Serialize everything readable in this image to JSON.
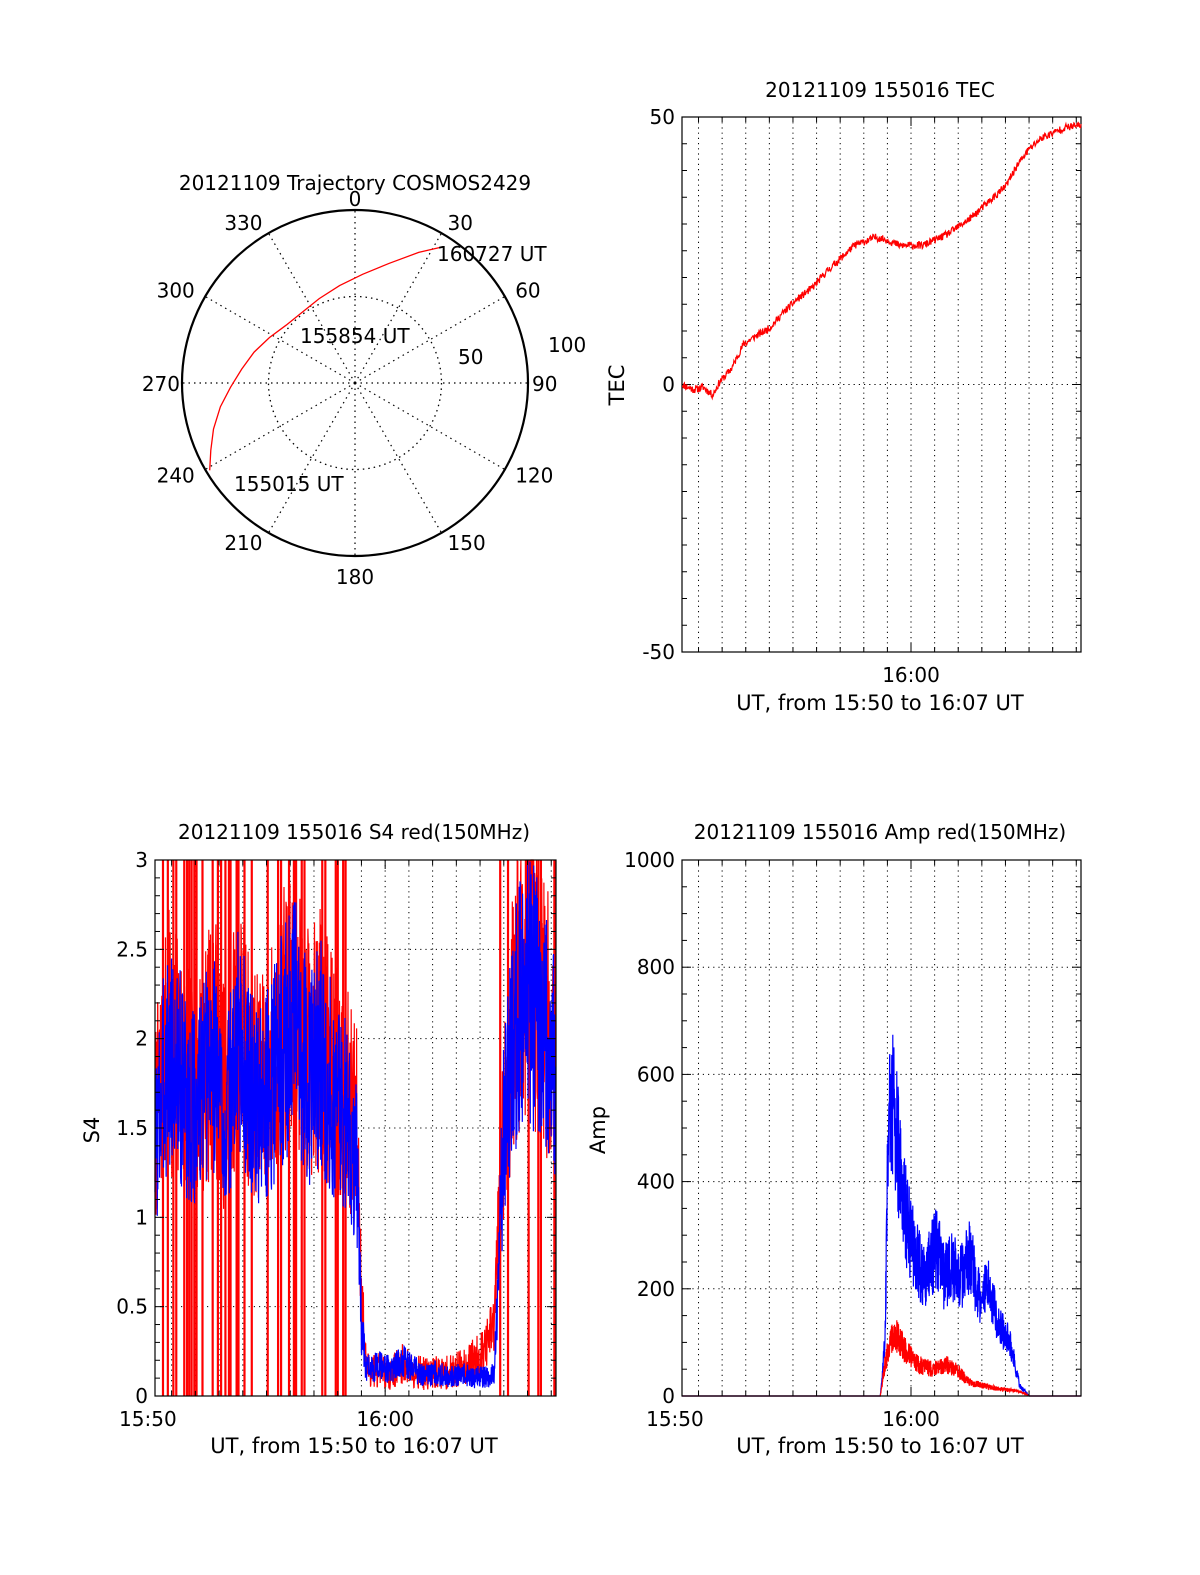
{
  "charts": [
    {
      "title": "20121109 Trajectory COSMOS2429",
      "angle_labels": [
        "0",
        "30",
        "60",
        "90",
        "120",
        "150",
        "180",
        "210",
        "240",
        "270",
        "300",
        "330"
      ],
      "ring_labels": [
        "50",
        "100"
      ],
      "track_labels": [
        {
          "text": "160727 UT"
        },
        {
          "text": "155854 UT"
        },
        {
          "text": "155015 UT"
        }
      ]
    },
    {
      "title": "20121109 155016 TEC",
      "ylabel": "TEC",
      "xlabel": "UT, from 15:50 to 16:07 UT",
      "x_tick_labels": [
        "16:00"
      ],
      "y_tick_labels": [
        "50",
        "0",
        "-50"
      ]
    },
    {
      "title": "20121109 155016 S4 red(150MHz)",
      "ylabel": "S4",
      "xlabel": "UT, from 15:50 to 16:07 UT",
      "x_tick_labels": [
        "15:50",
        "16:00"
      ],
      "y_tick_labels": [
        "0",
        "0.5",
        "1",
        "1.5",
        "2",
        "2.5",
        "3"
      ]
    },
    {
      "title": "20121109 155016 Amp red(150MHz)",
      "ylabel": "Amp",
      "xlabel": "UT, from 15:50 to 16:07 UT",
      "x_tick_labels": [
        "15:50",
        "16:00"
      ],
      "y_tick_labels": [
        "0",
        "200",
        "400",
        "600",
        "800",
        "1000"
      ]
    }
  ],
  "chart_data": [
    {
      "type": "scatter",
      "title": "20121109 Trajectory COSMOS2429",
      "projection": "polar",
      "r_max": 100,
      "rings": [
        50,
        100
      ],
      "series": [
        {
          "color": "#ff0000",
          "azimuth_deg": [
            239,
            245,
            252,
            260,
            268,
            277,
            287,
            298,
            310,
            323,
            337,
            351,
            4,
            16,
            26,
            33
          ],
          "radius": [
            98,
            92,
            86,
            79,
            72,
            66,
            61,
            56,
            52,
            51,
            53,
            57,
            63,
            72,
            84,
            94
          ]
        }
      ],
      "labels": [
        "160727 UT",
        "155854 UT",
        "155015 UT"
      ]
    },
    {
      "type": "line",
      "title": "20121109 155016 TEC",
      "xlabel": "UT, from 15:50 to 16:07 UT",
      "ylabel": "TEC",
      "xlim": [
        950.3,
        967.2
      ],
      "ylim": [
        -50,
        50
      ],
      "x_ticks": [
        960
      ],
      "y_ticks": [
        50,
        0,
        -50
      ],
      "grid": "vertical-dotted",
      "series": [
        {
          "color": "#ff0000",
          "x": [
            950.3,
            950.8,
            951.2,
            951.6,
            951.9,
            952.4,
            952.9,
            953.4,
            954.0,
            954.6,
            955.2,
            955.8,
            956.4,
            957.0,
            957.6,
            958.2,
            958.5,
            959.0,
            959.5,
            960.0,
            960.5,
            961.0,
            961.5,
            962.0,
            962.5,
            963.0,
            963.5,
            964.0,
            964.5,
            965.0,
            965.5,
            966.0,
            966.5,
            967.2
          ],
          "y": [
            0,
            -1,
            -0.5,
            -2,
            0.5,
            3,
            7.5,
            9,
            10.5,
            13.5,
            16,
            18,
            21,
            23.5,
            26,
            27,
            27.5,
            27,
            26,
            26,
            26,
            27,
            28,
            29.5,
            31,
            33,
            35,
            37,
            41,
            44,
            46,
            47,
            48,
            48.5
          ]
        }
      ]
    },
    {
      "type": "line",
      "title": "20121109 155016 S4 red(150MHz)",
      "xlabel": "UT, from 15:50 to 16:07 UT",
      "ylabel": "S4",
      "xlim": [
        950.3,
        967.2
      ],
      "ylim": [
        0,
        3
      ],
      "x_ticks": [
        950,
        960
      ],
      "y_ticks": [
        0,
        0.5,
        1,
        1.5,
        2,
        2.5,
        3
      ],
      "grid": "dotted",
      "series": [
        {
          "color": "#0000ff",
          "x": [
            950.3,
            950.8,
            951.3,
            951.8,
            952.3,
            952.8,
            953.3,
            953.8,
            954.3,
            954.8,
            955.3,
            955.8,
            956.3,
            956.8,
            957.3,
            957.8,
            958.3,
            958.8,
            959.0,
            959.2,
            959.7,
            960.2,
            960.7,
            961.2,
            961.7,
            962.2,
            962.7,
            963.2,
            963.7,
            964.2,
            964.6,
            965.0,
            965.5,
            966.0,
            966.5,
            967.2
          ],
          "y": [
            1.4,
            1.9,
            1.8,
            1.6,
            1.7,
            1.9,
            1.5,
            2.0,
            1.7,
            1.6,
            1.8,
            2.0,
            2.1,
            1.8,
            1.9,
            1.7,
            1.6,
            1.3,
            0.4,
            0.15,
            0.17,
            0.15,
            0.2,
            0.15,
            0.12,
            0.13,
            0.1,
            0.12,
            0.11,
            0.1,
            0.12,
            1.5,
            2.1,
            2.3,
            2.2,
            1.8
          ]
        },
        {
          "color": "#ff0000",
          "x": [
            950.3,
            950.8,
            951.3,
            951.8,
            952.3,
            952.8,
            953.3,
            953.8,
            954.3,
            954.8,
            955.3,
            955.8,
            956.3,
            956.8,
            957.3,
            957.8,
            958.3,
            958.8,
            959.0,
            959.2,
            959.7,
            960.2,
            960.7,
            961.2,
            961.7,
            962.2,
            962.7,
            963.2,
            963.7,
            964.2,
            964.6,
            965.0,
            965.5,
            966.0,
            966.5,
            967.2
          ],
          "y": [
            1.5,
            2.0,
            1.9,
            1.7,
            1.8,
            2.0,
            1.6,
            2.1,
            1.8,
            1.7,
            1.9,
            2.1,
            2.2,
            1.9,
            2.0,
            1.8,
            1.7,
            1.5,
            0.6,
            0.15,
            0.15,
            0.13,
            0.18,
            0.15,
            0.12,
            0.13,
            0.13,
            0.16,
            0.2,
            0.25,
            0.4,
            1.6,
            2.2,
            2.4,
            2.3,
            1.9
          ]
        }
      ]
    },
    {
      "type": "line",
      "title": "20121109 155016 Amp red(150MHz)",
      "xlabel": "UT, from 15:50 to 16:07 UT",
      "ylabel": "Amp",
      "xlim": [
        950.3,
        967.2
      ],
      "ylim": [
        0,
        1000
      ],
      "x_ticks": [
        950,
        960
      ],
      "y_ticks": [
        0,
        200,
        400,
        600,
        800,
        1000
      ],
      "grid": "dotted",
      "series": [
        {
          "color": "#0000ff",
          "x": [
            950.3,
            955.0,
            958.7,
            958.9,
            959.0,
            959.1,
            959.3,
            959.5,
            959.8,
            960.1,
            960.5,
            960.8,
            961.1,
            961.4,
            961.7,
            962.1,
            962.5,
            962.9,
            963.3,
            963.6,
            963.9,
            964.1,
            964.3,
            964.6,
            965.0,
            967.2
          ],
          "y": [
            0,
            0,
            0,
            100,
            380,
            560,
            520,
            430,
            330,
            280,
            220,
            250,
            280,
            220,
            240,
            220,
            260,
            180,
            200,
            150,
            120,
            110,
            80,
            20,
            0,
            0
          ]
        },
        {
          "color": "#ff0000",
          "x": [
            950.3,
            955.0,
            958.7,
            958.9,
            959.1,
            959.4,
            959.7,
            960.1,
            960.5,
            961.0,
            961.5,
            962.0,
            962.5,
            963.0,
            963.5,
            964.0,
            964.5,
            964.8,
            965.0,
            967.2
          ],
          "y": [
            0,
            0,
            0,
            60,
            100,
            110,
            90,
            65,
            55,
            50,
            60,
            45,
            25,
            20,
            15,
            12,
            10,
            5,
            0,
            0
          ]
        }
      ]
    }
  ]
}
